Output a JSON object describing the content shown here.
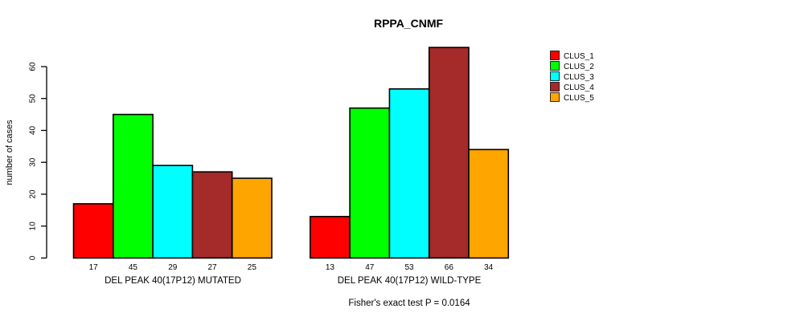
{
  "chart_data": {
    "type": "bar",
    "title": "RPPA_CNMF",
    "ylabel": "number of cases",
    "xlabel": "",
    "ylim": [
      0,
      60
    ],
    "yticks": [
      0,
      10,
      20,
      30,
      40,
      50,
      60
    ],
    "grid": false,
    "legend_position": "top-right",
    "categories": [
      "DEL PEAK 40(17P12) MUTATED",
      "DEL PEAK 40(17P12) WILD-TYPE"
    ],
    "series": [
      {
        "name": "CLUS_1",
        "color": "#FF0000",
        "values": [
          17,
          13
        ]
      },
      {
        "name": "CLUS_2",
        "color": "#00FF00",
        "values": [
          45,
          47
        ]
      },
      {
        "name": "CLUS_3",
        "color": "#00FFFF",
        "values": [
          29,
          53
        ]
      },
      {
        "name": "CLUS_4",
        "color": "#A52A2A",
        "values": [
          27,
          66
        ]
      },
      {
        "name": "CLUS_5",
        "color": "#FFA500",
        "values": [
          25,
          34
        ]
      }
    ],
    "bar_value_labels": [
      [
        17,
        45,
        29,
        27,
        25
      ],
      [
        13,
        47,
        53,
        66,
        34
      ]
    ],
    "footnote": "Fisher's exact test P = 0.0164",
    "axis_color": "#000000",
    "bar_border_color": "#000000"
  }
}
